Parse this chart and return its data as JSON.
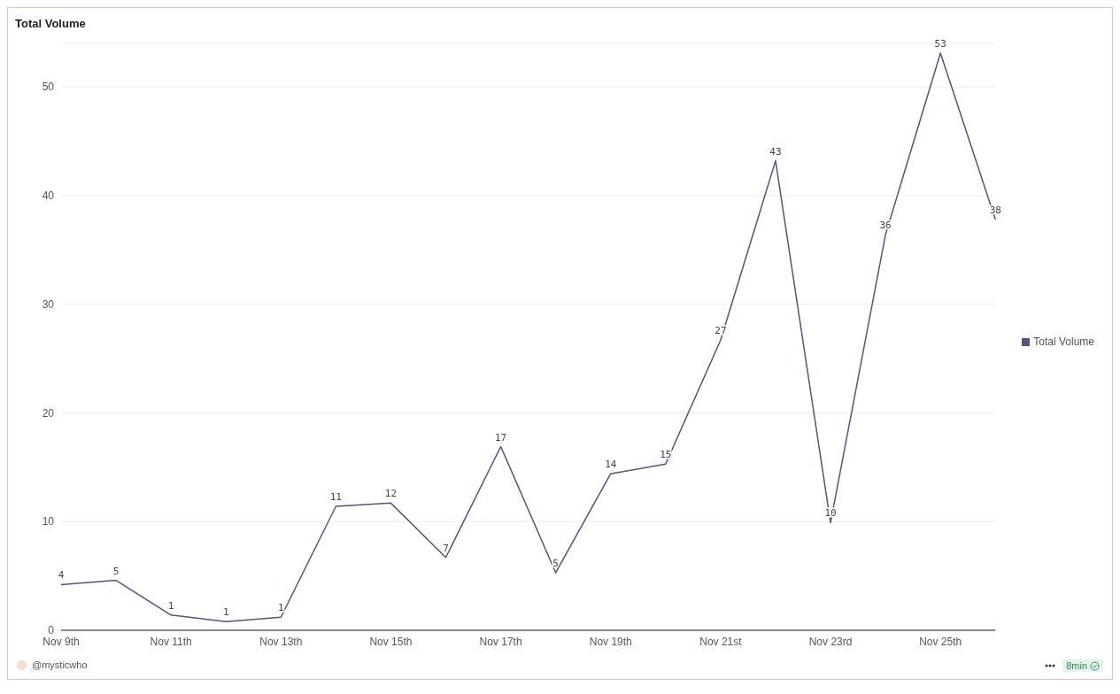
{
  "chart_data": {
    "type": "line",
    "title": "Total Volume",
    "categories": [
      "Nov 9th",
      null,
      "Nov 11th",
      null,
      "Nov 13th",
      null,
      "Nov 15th",
      null,
      "Nov 17th",
      null,
      "Nov 19th",
      null,
      "Nov 21st",
      null,
      "Nov 23rd",
      null,
      "Nov 25th",
      null
    ],
    "series": [
      {
        "name": "Total Volume",
        "color": "#5b4f86",
        "values": [
          4.2,
          4.6,
          1.4,
          0.8,
          1.2,
          11.4,
          11.7,
          6.7,
          16.9,
          5.3,
          14.4,
          15.3,
          26.7,
          43.2,
          9.9,
          36.4,
          53.1,
          37.8
        ],
        "value_labels": [
          "4",
          "5",
          "1",
          "1",
          "1",
          "11",
          "12",
          "7",
          "17",
          "5",
          "14",
          "15",
          "27",
          "43",
          "10",
          "36",
          "53",
          "38"
        ]
      }
    ],
    "ylim": [
      0,
      54
    ],
    "yticks": [
      0,
      10,
      20,
      30,
      40,
      50
    ],
    "grid": "y",
    "legend": "right",
    "marker": "none",
    "line_style": "solid",
    "annotations": [
      "@mysticwho",
      "8min"
    ]
  }
}
